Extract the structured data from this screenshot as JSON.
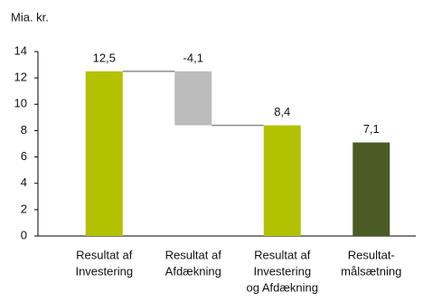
{
  "chart_data": {
    "type": "waterfall",
    "y_unit": "Mia. kr.",
    "categories": [
      [
        "Resultat af",
        "Investering"
      ],
      [
        "Resultat af",
        "Afdækning"
      ],
      [
        "Resultat af",
        "Investering",
        "og Afdækning"
      ],
      [
        "Resultat-",
        "målsætning"
      ]
    ],
    "values": [
      12.5,
      -4.1,
      8.4,
      7.1
    ],
    "value_labels": [
      "12,5",
      "-4,1",
      "8,4",
      "7,1"
    ],
    "measure": [
      "absolute",
      "relative",
      "total",
      "absolute"
    ],
    "colors": [
      "#b2c200",
      "#bcbcbc",
      "#b2c200",
      "#4a5b24"
    ],
    "connector_color": "#8c8c8c",
    "ylim": [
      0,
      14
    ],
    "yticks": [
      0,
      2,
      4,
      6,
      8,
      10,
      12,
      14
    ]
  }
}
